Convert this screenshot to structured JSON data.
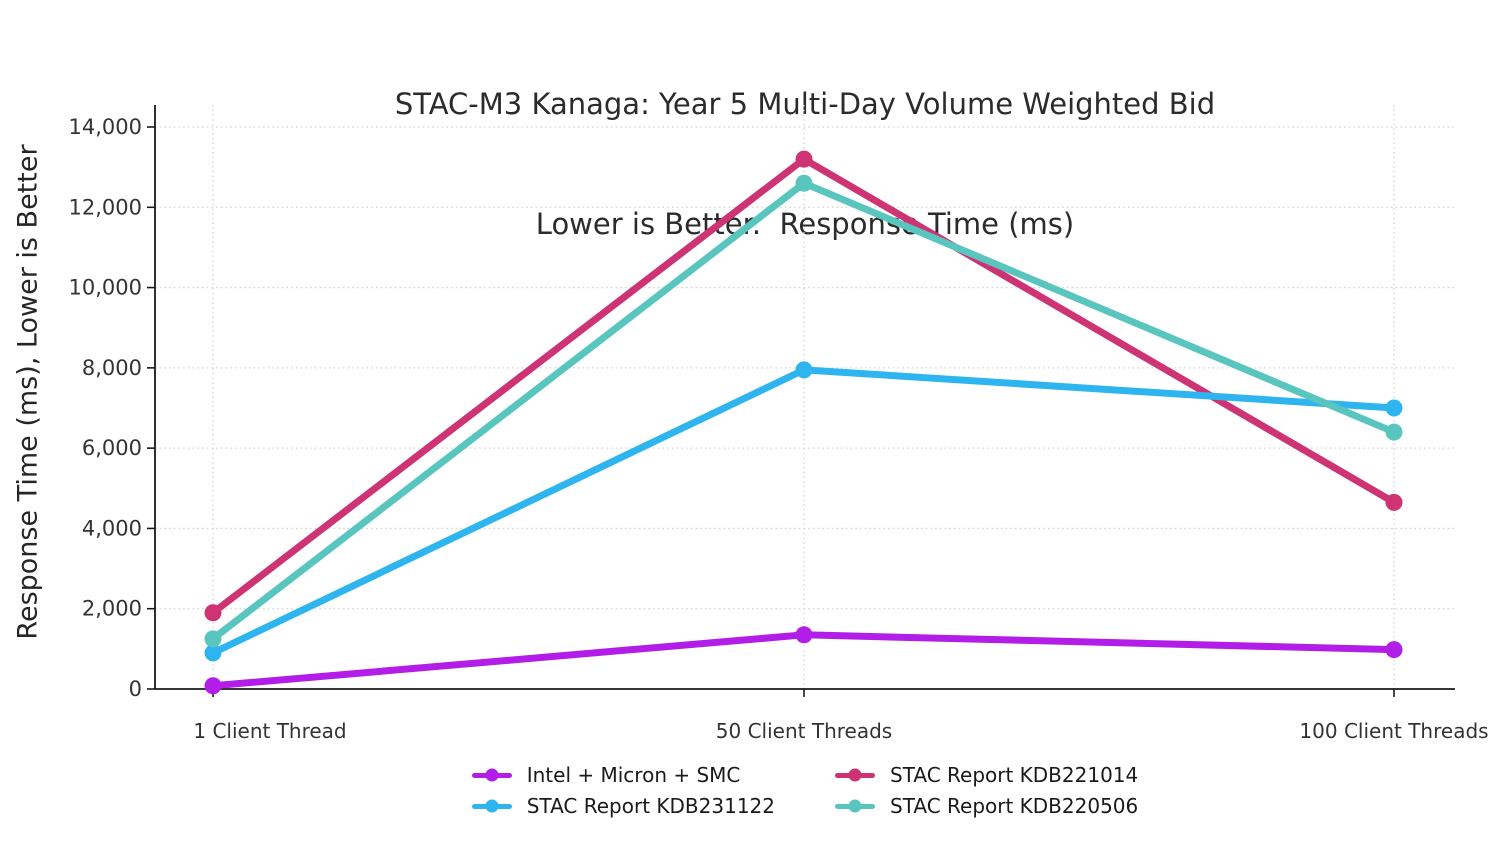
{
  "title": {
    "line1": "STAC-M3 Kanaga: Year 5 Multi-Day Volume Weighted Bid",
    "line2": "Lower is Better.  Response Time (ms)"
  },
  "chart_data": {
    "type": "line",
    "title": "STAC-M3 Kanaga: Year 5 Multi-Day Volume Weighted Bid\nLower is Better.  Response Time (ms)",
    "xlabel": "",
    "ylabel": "Response Time (ms), Lower is Better",
    "categories": [
      "1 Client Thread",
      "50 Client Threads",
      "100 Client Threads"
    ],
    "series": [
      {
        "name": "Intel + Micron + SMC",
        "color": "#B21EE8",
        "values": [
          80,
          1350,
          980
        ]
      },
      {
        "name": "STAC Report KDB221014",
        "color": "#CE3374",
        "values": [
          1900,
          13200,
          4650
        ]
      },
      {
        "name": "STAC Report KDB231122",
        "color": "#2EB5F0",
        "values": [
          900,
          7950,
          7000
        ]
      },
      {
        "name": "STAC Report KDB220506",
        "color": "#58C6BE",
        "values": [
          1250,
          12600,
          6400
        ]
      }
    ],
    "ylim": [
      0,
      14600
    ],
    "yticks": [
      0,
      2000,
      4000,
      6000,
      8000,
      10000,
      12000,
      14000
    ],
    "ytick_labels": [
      "0",
      "2,000",
      "4,000",
      "6,000",
      "8,000",
      "10,000",
      "12,000",
      "14,000"
    ],
    "grid": true,
    "grid_style": "dotted",
    "legend_position": "bottom-center",
    "legend_columns": 2,
    "colors": {
      "grid": "#d2d2d2",
      "axis": "#1a1a1a",
      "tick_text": "#333333"
    }
  }
}
